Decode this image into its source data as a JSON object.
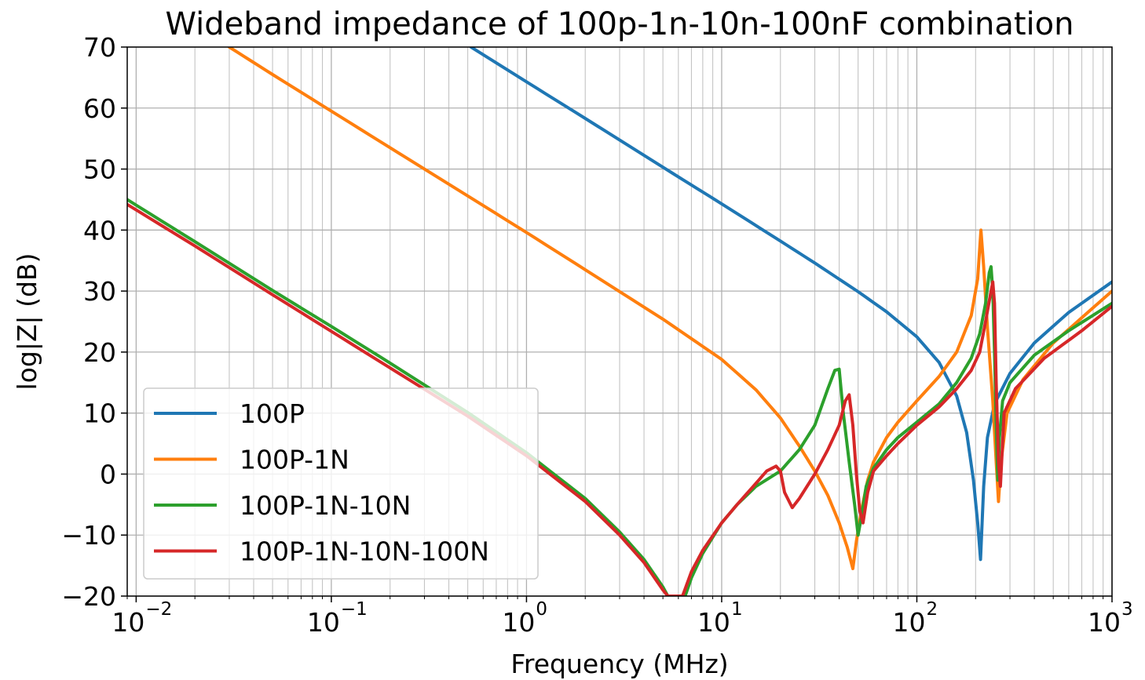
{
  "chart_data": {
    "type": "line",
    "title": "Wideband impedance of 100p-1n-10n-100nF combination",
    "xlabel": "Frequency (MHz)",
    "ylabel": "log|Z| (dB)",
    "xscale": "log",
    "xlim": [
      0.009,
      1000
    ],
    "ylim": [
      -20,
      70
    ],
    "grid": "major and minor",
    "legend_position": "lower-left",
    "x_tick_values": [
      0.01,
      0.1,
      1,
      10,
      100,
      1000
    ],
    "x_tick_labels": [
      {
        "base": "10",
        "exp": "−2"
      },
      {
        "base": "10",
        "exp": "−1"
      },
      {
        "base": "10",
        "exp": "0"
      },
      {
        "base": "10",
        "exp": "1"
      },
      {
        "base": "10",
        "exp": "2"
      },
      {
        "base": "10",
        "exp": "3"
      }
    ],
    "y_tick_values": [
      -20,
      -10,
      0,
      10,
      20,
      30,
      40,
      50,
      60,
      70
    ],
    "y_tick_labels": [
      "−20",
      "−10",
      "0",
      "10",
      "20",
      "30",
      "40",
      "50",
      "60",
      "70"
    ],
    "series": [
      {
        "name": "100P",
        "color": "#1f77b4",
        "x": [
          0.52,
          1,
          2,
          5,
          10,
          20,
          30,
          50,
          70,
          100,
          130,
          160,
          180,
          195,
          205,
          212,
          220,
          230,
          250,
          300,
          400,
          600,
          1000
        ],
        "y": [
          70,
          64.3,
          58.3,
          50.3,
          44.3,
          38.2,
          34.6,
          29.9,
          26.6,
          22.5,
          18.3,
          12.8,
          6.8,
          -1,
          -8,
          -14,
          -2,
          6,
          11.5,
          16.5,
          21.5,
          26.5,
          31.5
        ]
      },
      {
        "name": "100P-1N",
        "color": "#ff7f0e",
        "x": [
          0.03,
          0.05,
          0.1,
          0.2,
          0.5,
          1,
          2,
          5,
          10,
          15,
          20,
          25,
          30,
          35,
          40,
          44,
          47,
          49,
          52,
          56,
          60,
          70,
          80,
          100,
          130,
          160,
          190,
          205,
          213,
          220,
          230,
          245,
          255,
          262,
          270,
          290,
          350,
          500,
          1000
        ],
        "y": [
          70,
          65.5,
          59.5,
          53.5,
          45.6,
          39.6,
          33.5,
          25.4,
          18.8,
          13.8,
          9.2,
          4.6,
          0.5,
          -3.5,
          -8,
          -12,
          -15.5,
          -11,
          -6,
          -1,
          2,
          6,
          8.5,
          12,
          16,
          20,
          26,
          32,
          40,
          34,
          24,
          12,
          2,
          -4.5,
          2,
          10,
          15.5,
          21.5,
          30
        ]
      },
      {
        "name": "100P-1N-10N",
        "color": "#2ca02c",
        "x": [
          0.009,
          0.02,
          0.05,
          0.1,
          0.2,
          0.5,
          1,
          2,
          3,
          4,
          5,
          5.3,
          6.5,
          7,
          8,
          10,
          12,
          15,
          20,
          25,
          30,
          35,
          38,
          40,
          42,
          45,
          48,
          50,
          52,
          55,
          60,
          70,
          80,
          100,
          130,
          160,
          190,
          210,
          225,
          235,
          240,
          245,
          250,
          255,
          260,
          265,
          275,
          300,
          400,
          600,
          1000
        ],
        "y": [
          45,
          38.1,
          30.1,
          24.2,
          18.2,
          10.1,
          3.5,
          -4,
          -9.5,
          -14,
          -18.5,
          -20,
          -20,
          -17,
          -13,
          -8,
          -5,
          -2,
          0.5,
          4,
          8,
          14,
          17,
          17.2,
          10,
          2,
          -5,
          -10,
          -7,
          -2,
          1,
          4,
          6,
          8.5,
          11.5,
          15,
          19,
          23,
          28,
          33,
          34,
          30,
          20,
          8,
          -1,
          6,
          12,
          15,
          19.5,
          23.5,
          28
        ]
      },
      {
        "name": "100P-1N-10N-100N",
        "color": "#d62728",
        "x": [
          0.009,
          0.02,
          0.05,
          0.1,
          0.2,
          0.5,
          1,
          2,
          3,
          4,
          5,
          5.3,
          6.3,
          7,
          8,
          10,
          12,
          15,
          17,
          19,
          20,
          21,
          23,
          25,
          30,
          35,
          40,
          43,
          45,
          47,
          49,
          51,
          53,
          56,
          60,
          70,
          80,
          100,
          130,
          160,
          190,
          210,
          225,
          240,
          245,
          250,
          255,
          262,
          268,
          280,
          320,
          450,
          700,
          1000
        ],
        "y": [
          44.2,
          37.4,
          29.4,
          23.4,
          17.4,
          9.5,
          3,
          -4.5,
          -10,
          -14.5,
          -19,
          -20,
          -20,
          -16,
          -12.5,
          -8,
          -5,
          -1.5,
          0.5,
          1.3,
          0.5,
          -3,
          -5.5,
          -4,
          0,
          4,
          8,
          12,
          13,
          8,
          0,
          -6,
          -8,
          -3,
          0.5,
          3,
          5,
          8,
          11,
          14,
          17,
          20,
          25,
          30,
          31.5,
          28,
          15,
          2,
          -2,
          10,
          14,
          19,
          23.5,
          27.5
        ]
      }
    ]
  }
}
